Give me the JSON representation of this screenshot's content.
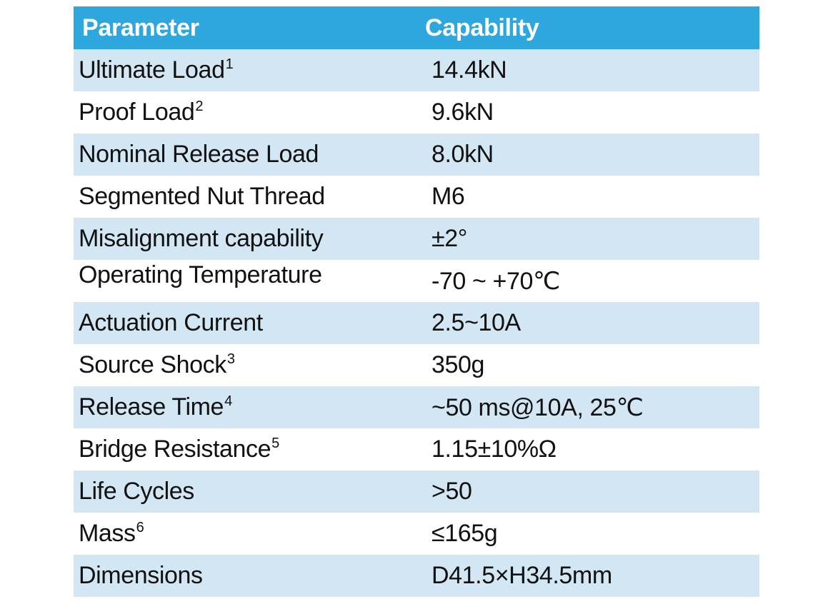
{
  "header": {
    "parameter": "Parameter",
    "capability": "Capability"
  },
  "rows": [
    {
      "parameter": "Ultimate Load",
      "note": "1",
      "value": "14.4kN"
    },
    {
      "parameter": "Proof Load",
      "note": "2",
      "value": "9.6kN"
    },
    {
      "parameter": "Nominal Release Load",
      "note": "",
      "value": "8.0kN"
    },
    {
      "parameter": "Segmented Nut Thread",
      "note": "",
      "value": "M6"
    },
    {
      "parameter": "Misalignment capability",
      "note": "",
      "value": "±2°"
    },
    {
      "parameter": "Operating Temperature",
      "note": "",
      "value": "-70 ~ +70℃"
    },
    {
      "parameter": "Actuation Current",
      "note": "",
      "value": "2.5~10A"
    },
    {
      "parameter": "Source Shock",
      "note": "3",
      "value": "350g"
    },
    {
      "parameter": "Release Time",
      "note": "4",
      "value": "~50 ms@10A, 25℃"
    },
    {
      "parameter": "Bridge Resistance",
      "note": "5",
      "value": "1.15±10%Ω"
    },
    {
      "parameter": "Life Cycles",
      "note": "",
      "value": ">50"
    },
    {
      "parameter": "Mass",
      "note": "6",
      "value": "≤165g"
    },
    {
      "parameter": "Dimensions",
      "note": "",
      "value": "D41.5×H34.5mm"
    }
  ],
  "colors": {
    "header_bg": "#2ea7df",
    "header_text": "#ffffff",
    "shaded_row_bg": "#d2e7f3",
    "plain_row_bg": "#ffffff",
    "text": "#111111"
  }
}
